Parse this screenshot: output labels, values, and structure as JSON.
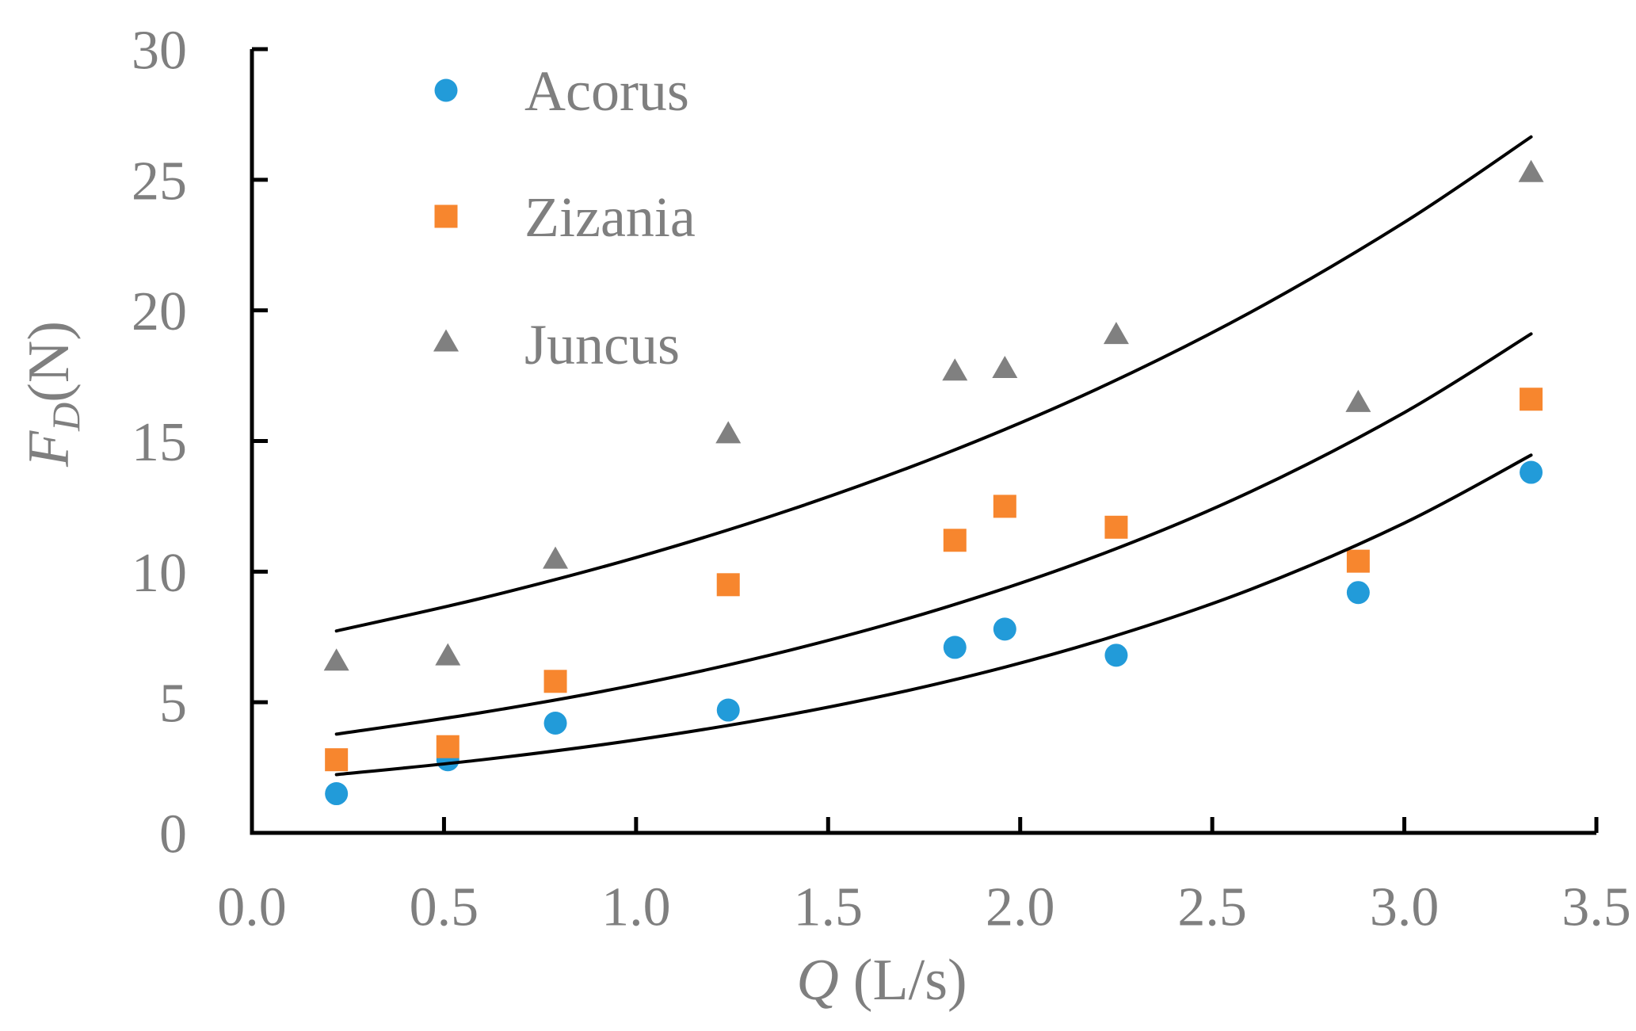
{
  "chart_data": {
    "type": "scatter",
    "xlim": [
      0,
      3.5
    ],
    "ylim": [
      0,
      30
    ],
    "x_ticks": [
      "0.0",
      "0.5",
      "1.0",
      "1.5",
      "2.0",
      "2.5",
      "3.0",
      "3.5"
    ],
    "y_ticks": [
      "0",
      "5",
      "10",
      "15",
      "20",
      "25",
      "30"
    ],
    "xlabel": {
      "symbol": "Q",
      "unit": "(L/s)"
    },
    "ylabel": {
      "symbol": "F",
      "subscript": "D",
      "unit": "(N)"
    },
    "grid": false,
    "legend": "top-left",
    "x": [
      0.22,
      0.51,
      0.79,
      1.24,
      1.83,
      1.96,
      2.25,
      2.88,
      3.33
    ],
    "series": [
      {
        "name": "Acorus",
        "marker": "circle",
        "color": "#229BD9",
        "y": [
          1.5,
          2.8,
          4.2,
          4.7,
          7.1,
          7.8,
          6.8,
          9.2,
          13.8
        ]
      },
      {
        "name": "Zizania",
        "marker": "square",
        "color": "#F7862E",
        "y": [
          2.8,
          3.3,
          5.8,
          9.5,
          11.2,
          12.5,
          11.7,
          10.4,
          16.6
        ]
      },
      {
        "name": "Juncus",
        "marker": "triangle",
        "color": "#808080",
        "y": [
          6.5,
          6.7,
          10.4,
          15.2,
          17.6,
          17.7,
          19.0,
          16.4,
          25.2
        ]
      }
    ],
    "trendlines": {
      "color": "#000000",
      "x": [
        0.22,
        0.6,
        1.0,
        1.4,
        1.8,
        2.2,
        2.6,
        3.0,
        3.33
      ],
      "lines": [
        {
          "y": [
            7.73,
            8.99,
            10.54,
            12.36,
            14.49,
            16.99,
            19.93,
            23.37,
            26.64
          ]
        },
        {
          "y": [
            3.78,
            4.61,
            5.67,
            6.99,
            8.61,
            10.6,
            13.06,
            16.09,
            19.1
          ]
        },
        {
          "y": [
            2.23,
            2.8,
            3.56,
            4.53,
            5.76,
            7.33,
            9.32,
            11.86,
            14.46
          ]
        }
      ]
    }
  },
  "colors": {
    "axis": "#000000",
    "text": "#7F7F7F",
    "background": "#FFFFFF"
  }
}
